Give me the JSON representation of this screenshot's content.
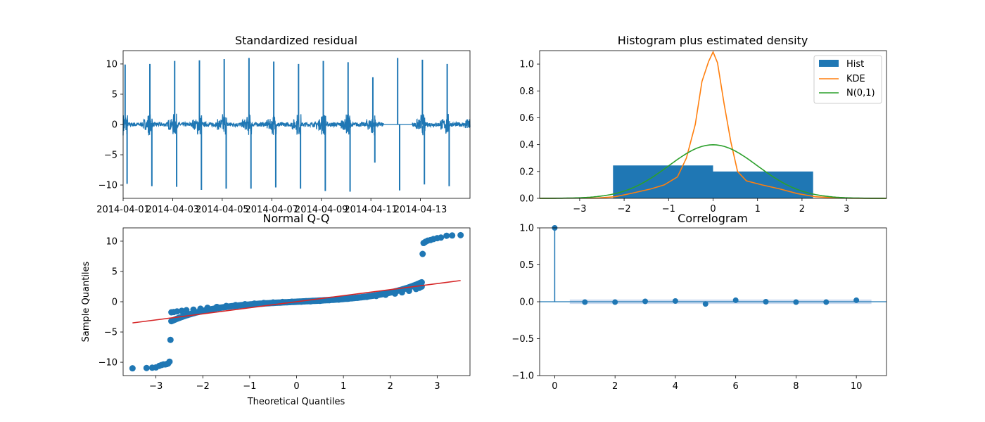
{
  "colors": {
    "blue": "#1f77b4",
    "orange": "#ff7f0e",
    "green": "#2ca02c",
    "red": "#d62728",
    "band": "#aec7e8"
  },
  "chart_data": [
    {
      "type": "line",
      "title": "Standardized residual",
      "xlabel": "",
      "ylabel": "",
      "x_ticks": [
        "2014-04-01",
        "2014-04-03",
        "2014-04-05",
        "2014-04-07",
        "2014-04-09",
        "2014-04-11",
        "2014-04-13"
      ],
      "xlim": [
        "2014-04-01",
        "2014-04-15"
      ],
      "ylim": [
        -12.2,
        12.2
      ],
      "y_ticks": [
        -10,
        -5,
        0,
        5,
        10
      ],
      "grid": false,
      "series": [
        {
          "values_note_hidden": "",
          "spikes_up": [
            [
              "2014-04-01",
              9.9
            ],
            [
              "2014-04-02",
              10.0
            ],
            [
              "2014-04-03",
              10.5
            ],
            [
              "2014-04-04",
              10.6
            ],
            [
              "2014-04-05",
              10.8
            ],
            [
              "2014-04-06",
              11.0
            ],
            [
              "2014-04-07",
              10.4
            ],
            [
              "2014-04-08",
              10.0
            ],
            [
              "2014-04-09",
              10.5
            ],
            [
              "2014-04-10",
              10.3
            ],
            [
              "2014-04-11",
              7.8
            ],
            [
              "2014-04-12",
              11.0
            ],
            [
              "2014-04-13",
              10.7
            ],
            [
              "2014-04-14",
              10.0
            ]
          ],
          "spikes_down": [
            [
              "2014-04-01",
              -9.8
            ],
            [
              "2014-04-02",
              -10.2
            ],
            [
              "2014-04-03",
              -10.3
            ],
            [
              "2014-04-04",
              -10.8
            ],
            [
              "2014-04-05",
              -10.6
            ],
            [
              "2014-04-06",
              -10.6
            ],
            [
              "2014-04-07",
              -10.4
            ],
            [
              "2014-04-08",
              -10.6
            ],
            [
              "2014-04-09",
              -11.0
            ],
            [
              "2014-04-10",
              -11.1
            ],
            [
              "2014-04-11",
              -6.3
            ],
            [
              "2014-04-12",
              -10.9
            ],
            [
              "2014-04-13",
              -9.9
            ],
            [
              "2014-04-14",
              -10.2
            ]
          ]
        }
      ]
    },
    {
      "type": "bar",
      "title": "Histogram plus estimated density",
      "xlabel": "",
      "ylabel": "",
      "xlim": [
        -3.9,
        3.9
      ],
      "ylim": [
        0,
        1.1
      ],
      "x_ticks": [
        -3,
        -2,
        -1,
        0,
        1,
        2,
        3
      ],
      "y_ticks": [
        0.0,
        0.2,
        0.4,
        0.6,
        0.8,
        1.0
      ],
      "legend": "top-right",
      "histogram": {
        "name": "Hist",
        "bins": [
          [
            -2.25,
            0.0,
            0.245
          ],
          [
            0.0,
            2.25,
            0.2
          ]
        ]
      },
      "kde": {
        "name": "KDE",
        "x": [
          -3.9,
          -2.6,
          -2.2,
          -1.8,
          -1.4,
          -1.1,
          -0.8,
          -0.6,
          -0.4,
          -0.25,
          -0.1,
          0.0,
          0.1,
          0.25,
          0.4,
          0.55,
          0.75,
          1.1,
          1.5,
          1.9,
          2.3,
          2.7,
          3.1,
          3.5,
          3.9
        ],
        "y": [
          0.0,
          0.002,
          0.012,
          0.04,
          0.07,
          0.1,
          0.16,
          0.3,
          0.55,
          0.87,
          1.02,
          1.09,
          1.01,
          0.7,
          0.42,
          0.2,
          0.13,
          0.1,
          0.07,
          0.035,
          0.012,
          0.004,
          0.001,
          0.0,
          0.0
        ]
      },
      "normal": {
        "name": "N(0,1)",
        "mean": 0,
        "sd": 1
      }
    },
    {
      "type": "scatter",
      "title": "Normal Q-Q",
      "xlabel": "Theoretical Quantiles",
      "ylabel": "Sample Quantiles",
      "xlim": [
        -3.7,
        3.7
      ],
      "ylim": [
        -12.2,
        12.2
      ],
      "x_ticks": [
        -3,
        -2,
        -1,
        0,
        1,
        2,
        3
      ],
      "y_ticks": [
        -10,
        -5,
        0,
        5,
        10
      ],
      "ref_line": [
        [
          -3.5,
          -3.5
        ],
        [
          3.5,
          3.5
        ]
      ],
      "points": [
        [
          -3.5,
          -11.0
        ],
        [
          -3.2,
          -10.95
        ],
        [
          -3.08,
          -10.9
        ],
        [
          -3.0,
          -10.85
        ],
        [
          -2.93,
          -10.6
        ],
        [
          -2.88,
          -10.45
        ],
        [
          -2.84,
          -10.35
        ],
        [
          -2.8,
          -10.35
        ],
        [
          -2.77,
          -10.3
        ],
        [
          -2.74,
          -10.2
        ],
        [
          -2.71,
          -9.9
        ],
        [
          -2.69,
          -6.3
        ],
        [
          -2.67,
          -1.75
        ],
        [
          -2.62,
          -1.7
        ],
        [
          -2.55,
          -1.6
        ],
        [
          -2.45,
          -1.5
        ],
        [
          -2.35,
          -1.4
        ],
        [
          -2.2,
          -1.3
        ],
        [
          -2.05,
          -1.15
        ],
        [
          -1.9,
          -1.0
        ],
        [
          -1.7,
          -0.85
        ],
        [
          -1.5,
          -0.7
        ],
        [
          -1.3,
          -0.55
        ],
        [
          -1.1,
          -0.4
        ],
        [
          -0.9,
          -0.3
        ],
        [
          -0.7,
          -0.2
        ],
        [
          -0.5,
          -0.12
        ],
        [
          -0.3,
          -0.05
        ],
        [
          -0.1,
          0.0
        ],
        [
          0.1,
          0.02
        ],
        [
          0.3,
          0.07
        ],
        [
          0.5,
          0.15
        ],
        [
          0.7,
          0.25
        ],
        [
          0.9,
          0.35
        ],
        [
          1.1,
          0.5
        ],
        [
          1.3,
          0.65
        ],
        [
          1.5,
          0.8
        ],
        [
          1.7,
          0.95
        ],
        [
          1.9,
          1.15
        ],
        [
          2.1,
          1.35
        ],
        [
          2.25,
          1.55
        ],
        [
          2.4,
          1.8
        ],
        [
          2.55,
          2.1
        ],
        [
          2.62,
          2.3
        ],
        [
          2.67,
          2.5
        ],
        [
          2.69,
          7.9
        ],
        [
          2.71,
          9.7
        ],
        [
          2.75,
          9.9
        ],
        [
          2.8,
          10.1
        ],
        [
          2.86,
          10.2
        ],
        [
          2.92,
          10.35
        ],
        [
          3.0,
          10.5
        ],
        [
          3.08,
          10.6
        ],
        [
          3.2,
          10.9
        ],
        [
          3.32,
          10.95
        ],
        [
          3.5,
          11.0
        ]
      ]
    },
    {
      "type": "scatter",
      "title": "Correlogram",
      "xlabel": "",
      "ylabel": "",
      "xlim": [
        -0.5,
        11.0
      ],
      "ylim": [
        -1.0,
        1.0
      ],
      "x_ticks": [
        0,
        2,
        4,
        6,
        8,
        10
      ],
      "y_ticks": [
        -1.0,
        -0.5,
        0.0,
        0.5,
        1.0
      ],
      "lags": [
        0,
        1,
        2,
        3,
        4,
        5,
        6,
        7,
        8,
        9,
        10
      ],
      "acf": [
        1.0,
        -0.005,
        -0.005,
        0.005,
        0.01,
        -0.03,
        0.02,
        0.0,
        -0.005,
        -0.005,
        0.02
      ],
      "confidence_band": {
        "x": [
          0.5,
          10.5
        ],
        "half_width": 0.03
      }
    }
  ]
}
